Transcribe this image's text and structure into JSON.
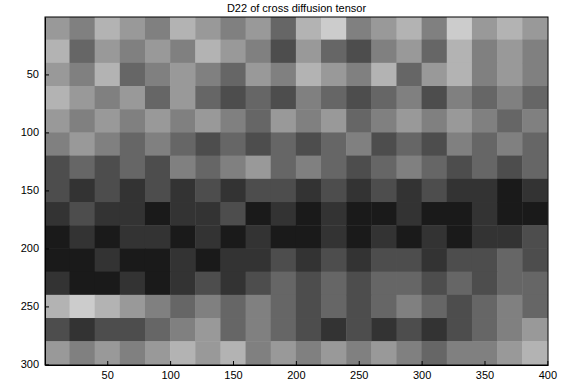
{
  "chart_data": {
    "type": "heatmap",
    "title": "D22 of cross diffusion tensor",
    "x": [
      10,
      30,
      50,
      70,
      90,
      110,
      130,
      150,
      170,
      190,
      210,
      230,
      250,
      270,
      290,
      310,
      330,
      350,
      370,
      390
    ],
    "y": [
      10,
      30,
      50,
      70,
      90,
      110,
      130,
      150,
      170,
      190,
      210,
      230,
      250,
      270,
      290
    ],
    "values": [
      [
        0.6,
        0.5,
        0.7,
        0.6,
        0.5,
        0.7,
        0.6,
        0.5,
        0.6,
        0.4,
        0.7,
        0.8,
        0.5,
        0.6,
        0.7,
        0.5,
        0.8,
        0.6,
        0.7,
        0.6
      ],
      [
        0.7,
        0.4,
        0.6,
        0.5,
        0.6,
        0.5,
        0.7,
        0.6,
        0.5,
        0.3,
        0.6,
        0.4,
        0.3,
        0.5,
        0.6,
        0.4,
        0.7,
        0.5,
        0.6,
        0.5
      ],
      [
        0.6,
        0.5,
        0.7,
        0.4,
        0.5,
        0.6,
        0.5,
        0.4,
        0.6,
        0.5,
        0.7,
        0.6,
        0.5,
        0.7,
        0.4,
        0.6,
        0.7,
        0.5,
        0.6,
        0.5
      ],
      [
        0.7,
        0.6,
        0.5,
        0.6,
        0.4,
        0.6,
        0.4,
        0.3,
        0.4,
        0.3,
        0.5,
        0.4,
        0.3,
        0.4,
        0.5,
        0.3,
        0.5,
        0.4,
        0.5,
        0.4
      ],
      [
        0.6,
        0.5,
        0.6,
        0.5,
        0.6,
        0.5,
        0.6,
        0.5,
        0.4,
        0.6,
        0.5,
        0.6,
        0.4,
        0.5,
        0.6,
        0.5,
        0.6,
        0.5,
        0.4,
        0.5
      ],
      [
        0.5,
        0.6,
        0.5,
        0.4,
        0.5,
        0.4,
        0.3,
        0.4,
        0.3,
        0.4,
        0.3,
        0.4,
        0.5,
        0.3,
        0.4,
        0.3,
        0.5,
        0.4,
        0.5,
        0.4
      ],
      [
        0.3,
        0.4,
        0.3,
        0.4,
        0.3,
        0.5,
        0.4,
        0.5,
        0.6,
        0.4,
        0.5,
        0.4,
        0.3,
        0.4,
        0.5,
        0.4,
        0.3,
        0.4,
        0.3,
        0.4
      ],
      [
        0.3,
        0.2,
        0.3,
        0.2,
        0.3,
        0.2,
        0.3,
        0.2,
        0.3,
        0.3,
        0.2,
        0.3,
        0.2,
        0.3,
        0.2,
        0.3,
        0.2,
        0.2,
        0.1,
        0.2
      ],
      [
        0.2,
        0.3,
        0.2,
        0.2,
        0.1,
        0.2,
        0.2,
        0.3,
        0.1,
        0.2,
        0.1,
        0.2,
        0.1,
        0.1,
        0.2,
        0.1,
        0.1,
        0.2,
        0.1,
        0.1
      ],
      [
        0.1,
        0.2,
        0.1,
        0.2,
        0.2,
        0.1,
        0.2,
        0.1,
        0.2,
        0.1,
        0.1,
        0.2,
        0.1,
        0.2,
        0.1,
        0.2,
        0.1,
        0.2,
        0.2,
        0.3
      ],
      [
        0.1,
        0.1,
        0.2,
        0.1,
        0.1,
        0.2,
        0.1,
        0.2,
        0.2,
        0.3,
        0.2,
        0.3,
        0.2,
        0.3,
        0.3,
        0.2,
        0.3,
        0.3,
        0.4,
        0.3
      ],
      [
        0.2,
        0.1,
        0.1,
        0.2,
        0.1,
        0.2,
        0.3,
        0.2,
        0.3,
        0.4,
        0.3,
        0.4,
        0.3,
        0.4,
        0.4,
        0.3,
        0.4,
        0.3,
        0.4,
        0.4
      ],
      [
        0.7,
        0.8,
        0.7,
        0.6,
        0.5,
        0.4,
        0.5,
        0.4,
        0.5,
        0.4,
        0.3,
        0.4,
        0.3,
        0.4,
        0.5,
        0.4,
        0.3,
        0.4,
        0.5,
        0.4
      ],
      [
        0.3,
        0.2,
        0.3,
        0.3,
        0.4,
        0.5,
        0.6,
        0.4,
        0.5,
        0.4,
        0.3,
        0.2,
        0.3,
        0.2,
        0.3,
        0.2,
        0.3,
        0.4,
        0.5,
        0.6
      ],
      [
        0.6,
        0.5,
        0.6,
        0.5,
        0.6,
        0.7,
        0.6,
        0.7,
        0.5,
        0.6,
        0.5,
        0.6,
        0.5,
        0.6,
        0.5,
        0.4,
        0.5,
        0.5,
        0.6,
        0.7
      ]
    ],
    "color_range": [
      0,
      1
    ],
    "xlim": [
      0.5,
      400.5
    ],
    "ylim": [
      0.5,
      300.5
    ],
    "xticks": [
      50,
      100,
      150,
      200,
      250,
      300,
      350,
      400
    ],
    "yticks": [
      50,
      100,
      150,
      200,
      250,
      300
    ]
  }
}
